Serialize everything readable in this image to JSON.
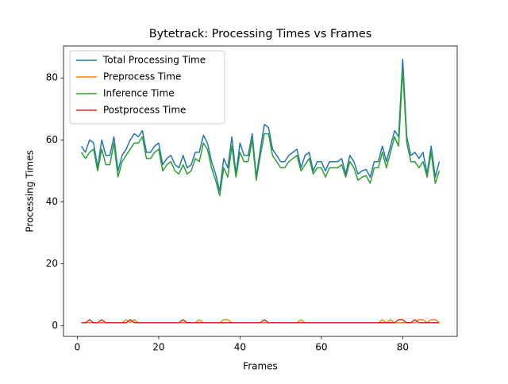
{
  "chart_data": {
    "type": "line",
    "title": "Bytetrack: Processing Times vs Frames",
    "xlabel": "Frames",
    "ylabel": "Processing Times",
    "x": [
      1,
      2,
      3,
      4,
      5,
      6,
      7,
      8,
      9,
      10,
      11,
      12,
      13,
      14,
      15,
      16,
      17,
      18,
      19,
      20,
      21,
      22,
      23,
      24,
      25,
      26,
      27,
      28,
      29,
      30,
      31,
      32,
      33,
      34,
      35,
      36,
      37,
      38,
      39,
      40,
      41,
      42,
      43,
      44,
      45,
      46,
      47,
      48,
      49,
      50,
      51,
      52,
      53,
      54,
      55,
      56,
      57,
      58,
      59,
      60,
      61,
      62,
      63,
      64,
      65,
      66,
      67,
      68,
      69,
      70,
      71,
      72,
      73,
      74,
      75,
      76,
      77,
      78,
      79,
      80,
      81,
      82,
      83,
      84,
      85,
      86,
      87,
      88,
      89
    ],
    "series": [
      {
        "name": "Total Processing Time",
        "color": "#1f77b4",
        "values": [
          58,
          56,
          60,
          59,
          51,
          60,
          55,
          55,
          61,
          50,
          55,
          57,
          60,
          62,
          61,
          63,
          56,
          56,
          58,
          59,
          52,
          54,
          55,
          52,
          51,
          55,
          51,
          52,
          56,
          56,
          61.5,
          59,
          53,
          49,
          43.5,
          54,
          51,
          61,
          49,
          59,
          55,
          55,
          62,
          48,
          57,
          65,
          64,
          57,
          55,
          53,
          53,
          55,
          56,
          57,
          51,
          55,
          56,
          50,
          53,
          53,
          50,
          53,
          53,
          53,
          54,
          49,
          55,
          53,
          49,
          50,
          50.5,
          48,
          53,
          53,
          58,
          53,
          58,
          63,
          61,
          86,
          61,
          55,
          56,
          54,
          56,
          49,
          58,
          48,
          53
        ]
      },
      {
        "name": "Preprocess Time",
        "color": "#ff7f0e",
        "values": [
          1,
          1,
          1,
          1,
          1,
          1,
          1,
          1,
          1,
          1,
          1,
          2,
          1,
          2,
          1,
          1,
          1,
          1,
          1,
          1,
          1,
          1,
          1,
          1,
          1,
          1,
          1,
          1,
          1,
          2,
          1,
          1,
          1,
          1,
          1,
          2,
          2,
          1,
          1,
          1,
          1,
          1,
          1,
          1,
          1,
          1,
          1,
          1,
          1,
          1,
          1,
          1,
          1,
          1,
          2,
          1,
          1,
          1,
          1,
          1,
          1,
          1,
          1,
          1,
          1,
          1,
          1,
          1,
          1,
          1,
          1,
          1,
          1,
          1,
          2,
          1,
          2,
          1,
          1,
          1,
          1,
          1,
          1,
          2,
          2,
          1,
          2,
          2,
          1
        ]
      },
      {
        "name": "Inference Time",
        "color": "#2ca02c",
        "values": [
          56,
          54,
          56,
          57,
          50,
          57,
          52,
          52,
          59,
          48,
          53,
          55,
          57,
          59,
          59,
          61,
          54,
          54,
          56,
          57,
          50,
          52,
          53,
          50,
          49,
          52,
          49,
          50,
          54,
          53,
          59,
          57,
          51,
          47,
          42,
          51,
          48,
          58,
          48,
          56,
          53,
          53,
          60,
          47,
          55,
          62,
          62,
          55,
          53,
          51,
          51,
          53,
          54,
          55,
          50,
          52,
          54,
          49,
          51,
          51,
          48,
          51,
          51,
          51,
          52,
          48,
          53,
          51,
          47,
          48,
          48.5,
          46,
          51,
          51,
          56,
          51,
          56,
          61,
          58,
          83,
          59,
          53,
          53,
          51,
          53,
          48,
          56,
          46,
          50
        ]
      },
      {
        "name": "Postprocess Time",
        "color": "#d62728",
        "values": [
          1,
          1,
          2,
          1,
          1,
          2,
          1,
          1,
          1,
          1,
          1,
          1,
          2,
          1,
          1,
          1,
          1,
          1,
          1,
          1,
          1,
          1,
          1,
          1,
          1,
          2,
          1,
          1,
          1,
          1,
          1,
          1,
          1,
          1,
          1,
          1,
          1,
          1,
          1,
          1,
          1,
          1,
          1,
          1,
          1,
          2,
          1,
          1,
          1,
          1,
          1,
          1,
          1,
          1,
          1,
          1,
          1,
          1,
          1,
          1,
          1,
          1,
          1,
          1,
          1,
          1,
          1,
          1,
          1,
          1,
          1,
          1,
          1,
          1,
          1,
          1,
          1,
          1,
          2,
          2,
          1,
          1,
          2,
          1,
          1,
          1,
          1,
          1,
          1
        ]
      }
    ],
    "xlim": [
      -3.4,
      93.4
    ],
    "ylim": [
      -3.4,
      90.3
    ],
    "xticks": [
      0,
      20,
      40,
      60,
      80
    ],
    "yticks": [
      0,
      20,
      40,
      60,
      80
    ],
    "legend": "upper left"
  }
}
